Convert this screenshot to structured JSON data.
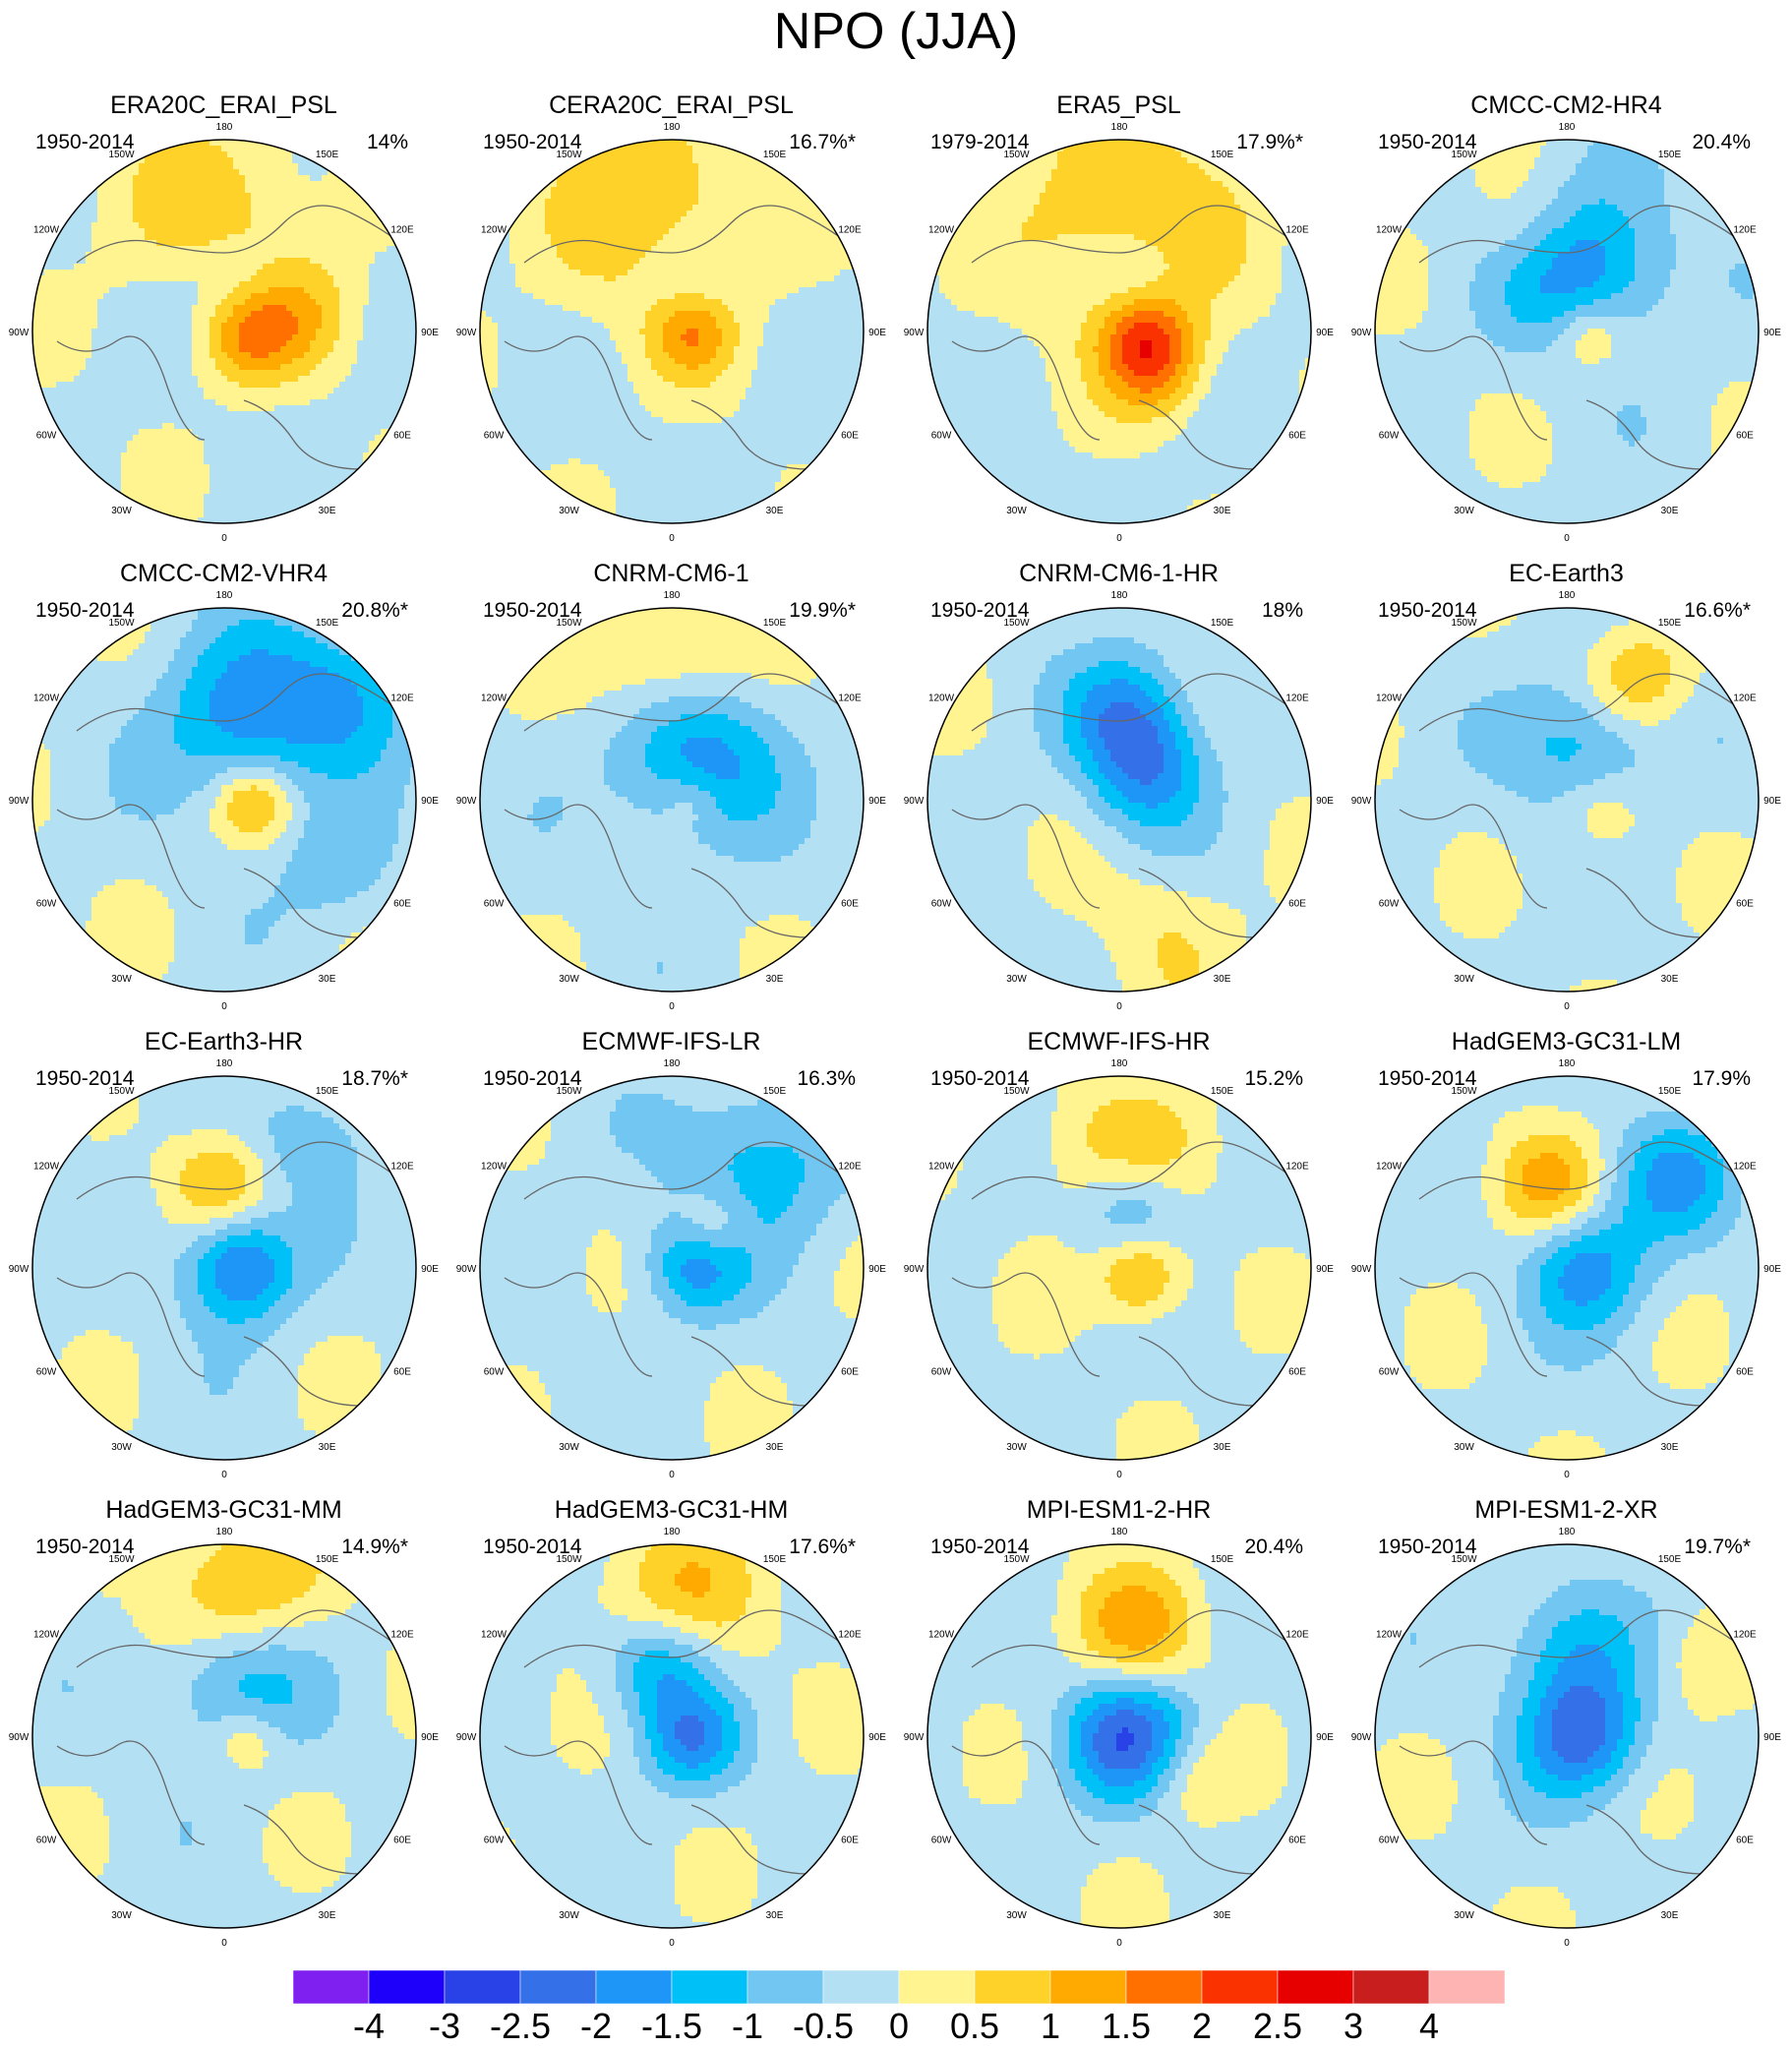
{
  "title": "NPO (JJA)",
  "panels": [
    {
      "name": "ERA20C_ERAI_PSL",
      "period": "1950-2014",
      "variance": "14%",
      "blobs": [
        {
          "lon": 180,
          "r": 0.58,
          "v": 1.0,
          "w": 0.38
        },
        {
          "lon": 170,
          "r": 0.22,
          "v": -0.9,
          "w": 0.2
        },
        {
          "lon": 90,
          "r": 0.12,
          "v": 1.7,
          "w": 0.18
        },
        {
          "lon": 100,
          "r": 0.45,
          "v": 0.7,
          "w": 0.2
        }
      ]
    },
    {
      "name": "CERA20C_ERAI_PSL",
      "period": "1950-2014",
      "variance": "16.7%*",
      "blobs": [
        {
          "lon": 185,
          "r": 0.58,
          "v": 1.2,
          "w": 0.4
        },
        {
          "lon": 165,
          "r": 0.25,
          "v": -0.8,
          "w": 0.2
        },
        {
          "lon": 90,
          "r": 0.1,
          "v": 1.4,
          "w": 0.16
        }
      ]
    },
    {
      "name": "ERA5_PSL",
      "period": "1979-2014",
      "variance": "17.9%*",
      "blobs": [
        {
          "lon": 175,
          "r": 0.58,
          "v": 1.3,
          "w": 0.4
        },
        {
          "lon": 160,
          "r": 0.28,
          "v": -0.8,
          "w": 0.2
        },
        {
          "lon": 80,
          "r": 0.14,
          "v": 1.9,
          "w": 0.18
        },
        {
          "lon": 40,
          "r": 0.3,
          "v": 1.0,
          "w": 0.18
        }
      ]
    },
    {
      "name": "CMCC-CM2-HR4",
      "period": "1950-2014",
      "variance": "20.4%",
      "blobs": [
        {
          "lon": 170,
          "r": 0.35,
          "v": -2.0,
          "w": 0.3
        },
        {
          "lon": 200,
          "r": 0.55,
          "v": 0.9,
          "w": 0.22
        },
        {
          "lon": 80,
          "r": 0.12,
          "v": 1.1,
          "w": 0.14
        }
      ]
    },
    {
      "name": "CMCC-CM2-VHR4",
      "period": "1950-2014",
      "variance": "20.8%*",
      "blobs": [
        {
          "lon": 165,
          "r": 0.45,
          "v": -1.6,
          "w": 0.32
        },
        {
          "lon": 130,
          "r": 0.85,
          "v": -1.2,
          "w": 0.25
        },
        {
          "lon": 80,
          "r": 0.15,
          "v": 1.4,
          "w": 0.14
        },
        {
          "lon": 60,
          "r": 0.7,
          "v": -0.8,
          "w": 0.2
        }
      ]
    },
    {
      "name": "CNRM-CM6-1",
      "period": "1950-2014",
      "variance": "19.9%*",
      "blobs": [
        {
          "lon": 180,
          "r": 0.72,
          "v": 1.2,
          "w": 0.28
        },
        {
          "lon": 150,
          "r": 0.28,
          "v": -1.8,
          "w": 0.3
        },
        {
          "lon": 90,
          "r": 0.1,
          "v": 0.6,
          "w": 0.1
        }
      ]
    },
    {
      "name": "CNRM-CM6-1-HR",
      "period": "1950-2014",
      "variance": "18%",
      "blobs": [
        {
          "lon": 175,
          "r": 0.45,
          "v": -1.6,
          "w": 0.22
        },
        {
          "lon": 130,
          "r": 0.2,
          "v": -1.5,
          "w": 0.22
        },
        {
          "lon": 20,
          "r": 0.75,
          "v": 0.6,
          "w": 0.25
        }
      ]
    },
    {
      "name": "EC-Earth3",
      "period": "1950-2014",
      "variance": "16.6%*",
      "blobs": [
        {
          "lon": 150,
          "r": 0.72,
          "v": 1.2,
          "w": 0.2
        },
        {
          "lon": 160,
          "r": 0.3,
          "v": -1.3,
          "w": 0.26
        },
        {
          "lon": 70,
          "r": 0.2,
          "v": 0.8,
          "w": 0.16
        }
      ]
    },
    {
      "name": "EC-Earth3-HR",
      "period": "1950-2014",
      "variance": "18.7%*",
      "blobs": [
        {
          "lon": 90,
          "r": 0.08,
          "v": -2.1,
          "w": 0.2
        },
        {
          "lon": 185,
          "r": 0.45,
          "v": 1.1,
          "w": 0.18
        },
        {
          "lon": 145,
          "r": 0.8,
          "v": -0.9,
          "w": 0.18
        }
      ]
    },
    {
      "name": "ECMWF-IFS-LR",
      "period": "1950-2014",
      "variance": "16.3%",
      "blobs": [
        {
          "lon": 140,
          "r": 0.7,
          "v": -1.2,
          "w": 0.3
        },
        {
          "lon": 135,
          "r": 0.3,
          "v": 1.1,
          "w": 0.14
        },
        {
          "lon": 100,
          "r": 0.12,
          "v": -1.6,
          "w": 0.18
        }
      ]
    },
    {
      "name": "ECMWF-IFS-HR",
      "period": "1950-2014",
      "variance": "15.2%",
      "blobs": [
        {
          "lon": 180,
          "r": 0.55,
          "v": 1.2,
          "w": 0.28
        },
        {
          "lon": 170,
          "r": 0.33,
          "v": -1.5,
          "w": 0.2
        },
        {
          "lon": 70,
          "r": 0.12,
          "v": 1.5,
          "w": 0.16
        }
      ]
    },
    {
      "name": "HadGEM3-GC31-LM",
      "period": "1950-2014",
      "variance": "17.9%",
      "blobs": [
        {
          "lon": 130,
          "r": 0.72,
          "v": -1.4,
          "w": 0.22
        },
        {
          "lon": 195,
          "r": 0.45,
          "v": 1.3,
          "w": 0.2
        },
        {
          "lon": 90,
          "r": 0.1,
          "v": -1.6,
          "w": 0.22
        }
      ]
    },
    {
      "name": "HadGEM3-GC31-MM",
      "period": "1950-2014",
      "variance": "14.9%*",
      "blobs": [
        {
          "lon": 175,
          "r": 0.7,
          "v": 1.6,
          "w": 0.3
        },
        {
          "lon": 170,
          "r": 0.35,
          "v": -1.6,
          "w": 0.28
        },
        {
          "lon": 80,
          "r": 0.12,
          "v": 0.9,
          "w": 0.12
        }
      ]
    },
    {
      "name": "HadGEM3-GC31-HM",
      "period": "1950-2014",
      "variance": "17.6%*",
      "blobs": [
        {
          "lon": 180,
          "r": 0.7,
          "v": 1.2,
          "w": 0.3
        },
        {
          "lon": 190,
          "r": 0.38,
          "v": -1.7,
          "w": 0.2
        },
        {
          "lon": 80,
          "r": 0.1,
          "v": -1.6,
          "w": 0.18
        }
      ]
    },
    {
      "name": "MPI-ESM1-2-HR",
      "period": "1950-2014",
      "variance": "20.4%",
      "blobs": [
        {
          "lon": 90,
          "r": 0.06,
          "v": -2.3,
          "w": 0.24
        },
        {
          "lon": 170,
          "r": 0.55,
          "v": 1.4,
          "w": 0.24
        },
        {
          "lon": 60,
          "r": 0.4,
          "v": 0.8,
          "w": 0.18
        }
      ]
    },
    {
      "name": "MPI-ESM1-2-XR",
      "period": "1950-2014",
      "variance": "19.7%*",
      "blobs": [
        {
          "lon": 90,
          "r": 0.08,
          "v": -2.0,
          "w": 0.22
        },
        {
          "lon": 175,
          "r": 0.45,
          "v": -1.3,
          "w": 0.24
        },
        {
          "lon": 120,
          "r": 0.8,
          "v": 0.6,
          "w": 0.2
        }
      ]
    }
  ],
  "lon_labels": [
    "180",
    "150E",
    "120E",
    "90E",
    "60E",
    "30E",
    "0",
    "30W",
    "60W",
    "90W",
    "120W",
    "150W"
  ],
  "colorbar": {
    "colors": [
      "#8020f0",
      "#1e00fa",
      "#2842e8",
      "#3470e8",
      "#1e96f8",
      "#00c0f8",
      "#72c6f2",
      "#b4e0f4",
      "#fff490",
      "#ffd22a",
      "#ffaa00",
      "#ff7000",
      "#fa3200",
      "#e60000",
      "#c81e1e",
      "#ffb4b4"
    ],
    "labels": [
      "-4",
      "-3",
      "-2.5",
      "-2",
      "-1.5",
      "-1",
      "-0.5",
      "0",
      "0.5",
      "1",
      "1.5",
      "2",
      "2.5",
      "3",
      "4"
    ],
    "levels": [
      -4,
      -3,
      -2.5,
      -2,
      -1.5,
      -1,
      -0.5,
      0,
      0.5,
      1,
      1.5,
      2,
      2.5,
      3,
      4
    ]
  }
}
